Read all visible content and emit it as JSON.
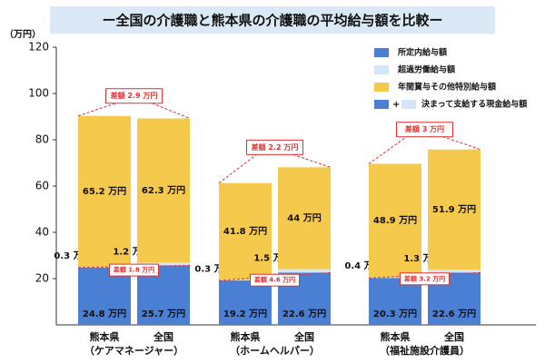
{
  "chart_data": {
    "type": "stacked-bar",
    "title": "ー全国の介護職と熊本県の介護職の平均給与額を比較ー",
    "y_label": "（万円）",
    "categories": [
      "熊本県",
      "全国",
      "熊本県",
      "全国",
      "熊本県",
      "全国"
    ],
    "groups": [
      "（ケアマネージャー）",
      "（ホームヘルパー）",
      "（福祉施設介護員）"
    ],
    "series": [
      {
        "name": "所定内給与額",
        "color": "#4a7fd4",
        "values": [
          24.8,
          25.7,
          19.2,
          22.6,
          20.3,
          22.6
        ],
        "value_labels": [
          "24.8 万円",
          "25.7 万円",
          "19.2 万円",
          "22.6 万円",
          "20.3 万円",
          "22.6 万円"
        ]
      },
      {
        "name": "超過労働給与額",
        "color": "#d3e6f7",
        "values": [
          0.3,
          1.2,
          0.3,
          1.5,
          0.4,
          1.3
        ],
        "value_labels": [
          "0.3 万円",
          "1.2 万円",
          "0.3 万円",
          "1.5 万円",
          "0.4 万円",
          "1.3 万円"
        ]
      },
      {
        "name": "年間賞与その他特別給与額",
        "color": "#f5c94c",
        "values": [
          65.2,
          62.3,
          41.8,
          44,
          48.9,
          51.9
        ],
        "value_labels": [
          "65.2 万円",
          "62.3 万円",
          "41.8 万円",
          "44 万円",
          "48.9 万円",
          "51.9 万円"
        ]
      }
    ],
    "legend_combo": {
      "joiner": "+",
      "label": "決まって支給する現金給与額"
    },
    "total_differences": [
      "差額 2.9 万円",
      "差額 2.2 万円",
      "差額 3 万円"
    ],
    "base_differences": [
      "差額 1.8 万円",
      "差額 4.6 万円",
      "差額 3.2 万円"
    ],
    "ylim": [
      0,
      120
    ],
    "yticks": [
      20,
      40,
      60,
      80,
      100,
      120
    ],
    "grid": false
  }
}
